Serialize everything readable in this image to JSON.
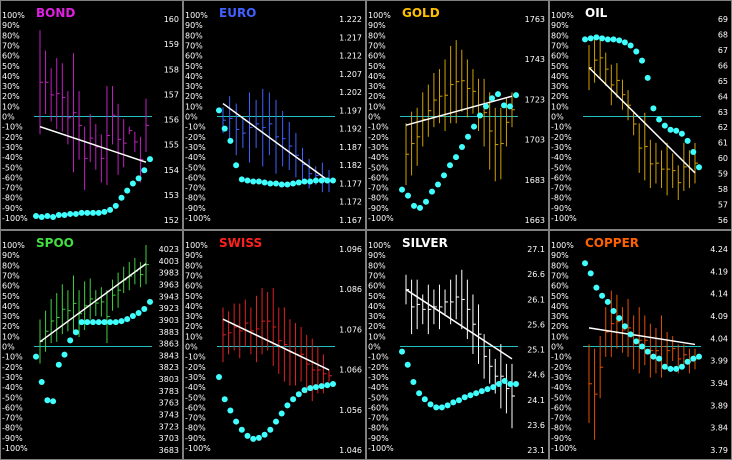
{
  "chart_data": [
    {
      "type": "line",
      "title": "BOND",
      "title_color": "#e020e0",
      "price_color": "#c020c0",
      "oscillator_ticks": [
        "100%",
        "90%",
        "80%",
        "70%",
        "60%",
        "50%",
        "40%",
        "30%",
        "20%",
        "10%",
        "0%",
        "-10%",
        "-20%",
        "-30%",
        "-40%",
        "-50%",
        "-60%",
        "-70%",
        "-80%",
        "-90%",
        "-100%"
      ],
      "price_ticks": [
        "160",
        "159",
        "158",
        "157",
        "156",
        "155",
        "154",
        "153",
        "152"
      ],
      "price_range": [
        152,
        160
      ],
      "bars": [
        [
          155.3,
          159.4
        ],
        [
          156.1,
          158.6
        ],
        [
          155.8,
          157.9
        ],
        [
          155.5,
          158.3
        ],
        [
          155.4,
          158.1
        ],
        [
          154.9,
          157.0
        ],
        [
          153.8,
          158.5
        ],
        [
          154.3,
          157.0
        ],
        [
          153.1,
          155.6
        ],
        [
          154.2,
          156.1
        ],
        [
          153.9,
          155.7
        ],
        [
          153.4,
          155.3
        ],
        [
          153.3,
          157.2
        ],
        [
          154.9,
          157.2
        ],
        [
          153.7,
          156.5
        ],
        [
          154.0,
          155.9
        ],
        [
          155.3,
          155.6
        ],
        [
          154.6,
          155.4
        ],
        [
          153.4,
          155.2
        ],
        [
          154.6,
          156.7
        ]
      ],
      "regression": [
        155.6,
        154.2
      ],
      "oscillator": [
        -98,
        -99,
        -98,
        -99,
        -97,
        -97,
        -96,
        -96,
        -95,
        -95,
        -95,
        -95,
        -94,
        -92,
        -88,
        -80,
        -73,
        -66,
        -61,
        -53,
        -42
      ],
      "zero_line": true
    },
    {
      "type": "line",
      "title": "EURO",
      "title_color": "#4060ff",
      "price_color": "#4060ff",
      "oscillator_ticks": [
        "100%",
        "90%",
        "80%",
        "70%",
        "60%",
        "50%",
        "40%",
        "30%",
        "20%",
        "10%",
        "0%",
        "-10%",
        "-20%",
        "-30%",
        "-40%",
        "-50%",
        "-60%",
        "-70%",
        "-80%",
        "-90%",
        "-100%"
      ],
      "price_ticks": [
        "1.222",
        "1.217",
        "1.212",
        "1.207",
        "1.202",
        "1.197",
        "1.192",
        "1.187",
        "1.182",
        "1.177",
        "1.172",
        "1.167"
      ],
      "price_range": [
        1.167,
        1.222
      ],
      "bars": [
        [
          1.19,
          1.197
        ],
        [
          1.188,
          1.2
        ],
        [
          1.184,
          1.198
        ],
        [
          1.186,
          1.194
        ],
        [
          1.182,
          1.201
        ],
        [
          1.186,
          1.199
        ],
        [
          1.181,
          1.202
        ],
        [
          1.184,
          1.201
        ],
        [
          1.179,
          1.199
        ],
        [
          1.181,
          1.196
        ],
        [
          1.18,
          1.193
        ],
        [
          1.178,
          1.19
        ],
        [
          1.177,
          1.186
        ],
        [
          1.175,
          1.183
        ],
        [
          1.176,
          1.181
        ],
        [
          1.174,
          1.182
        ],
        [
          1.174,
          1.18
        ]
      ],
      "regression": [
        1.198,
        1.177
      ],
      "oscillator": [
        6,
        -12,
        -24,
        -48,
        -62,
        -63,
        -64,
        -64,
        -65,
        -66,
        -66,
        -67,
        -67,
        -66,
        -65,
        -64,
        -64,
        -63,
        -63,
        -63,
        -63
      ],
      "zero_line": true
    },
    {
      "type": "line",
      "title": "GOLD",
      "title_color": "#ffc000",
      "price_color": "#d0a000",
      "oscillator_ticks": [
        "100%",
        "90%",
        "80%",
        "70%",
        "60%",
        "50%",
        "40%",
        "30%",
        "20%",
        "10%",
        "0%",
        "-10%",
        "-20%",
        "-30%",
        "-40%",
        "-50%",
        "-60%",
        "-70%",
        "-80%",
        "-90%",
        "-100%"
      ],
      "price_ticks": [
        "1763",
        "1743",
        "1723",
        "1703",
        "1683",
        "1663"
      ],
      "price_range": [
        1663,
        1768
      ],
      "bars": [
        [
          1680,
          1712
        ],
        [
          1685,
          1718
        ],
        [
          1690,
          1720
        ],
        [
          1700,
          1728
        ],
        [
          1705,
          1732
        ],
        [
          1710,
          1738
        ],
        [
          1712,
          1740
        ],
        [
          1708,
          1745
        ],
        [
          1712,
          1752
        ],
        [
          1712,
          1755
        ],
        [
          1718,
          1750
        ],
        [
          1715,
          1745
        ],
        [
          1717,
          1740
        ],
        [
          1708,
          1735
        ],
        [
          1700,
          1735
        ],
        [
          1688,
          1728
        ],
        [
          1682,
          1720
        ],
        [
          1683,
          1720
        ],
        [
          1700,
          1725
        ],
        [
          1710,
          1728
        ]
      ],
      "regression": [
        1711,
        1726
      ],
      "oscillator": [
        -72,
        -78,
        -88,
        -90,
        -84,
        -74,
        -67,
        -58,
        -48,
        -40,
        -30,
        -20,
        -10,
        1,
        10,
        18,
        22,
        11,
        10,
        21
      ],
      "zero_line": true
    },
    {
      "type": "line",
      "title": "OIL",
      "title_color": "#ffffff",
      "price_color": "#d0a000",
      "oscillator_ticks": [
        "100%",
        "90%",
        "80%",
        "70%",
        "60%",
        "50%",
        "40%",
        "30%",
        "20%",
        "10%",
        "0%",
        "-10%",
        "-20%",
        "-30%",
        "-40%",
        "-50%",
        "-60%",
        "-70%",
        "-80%",
        "-90%",
        "-100%"
      ],
      "price_ticks": [
        "69",
        "68",
        "67",
        "66",
        "65",
        "64",
        "63",
        "62",
        "61",
        "60",
        "59",
        "58",
        "57",
        "56"
      ],
      "price_range": [
        56,
        69.5
      ],
      "bars": [
        [
          64.5,
          67.5
        ],
        [
          65.0,
          68.0
        ],
        [
          65.3,
          68.0
        ],
        [
          64.8,
          67.0
        ],
        [
          63.5,
          66.2
        ],
        [
          64.0,
          66.3
        ],
        [
          63.2,
          65.2
        ],
        [
          62.5,
          64.5
        ],
        [
          61.5,
          63.0
        ],
        [
          59.0,
          62.3
        ],
        [
          58.5,
          63.0
        ],
        [
          58.0,
          61.2
        ],
        [
          58.3,
          61.0
        ],
        [
          58.0,
          60.5
        ],
        [
          57.5,
          61.0
        ],
        [
          58.0,
          60.3
        ],
        [
          57.2,
          59.5
        ],
        [
          57.8,
          61.0
        ],
        [
          58.0,
          60.5
        ],
        [
          58.3,
          61.0
        ]
      ],
      "regression": [
        66.0,
        59.0
      ],
      "oscillator": [
        76,
        77,
        78,
        77,
        76,
        76,
        75,
        73,
        70,
        64,
        55,
        38,
        8,
        -3,
        -9,
        -13,
        -14,
        -17,
        -24,
        -35,
        -50
      ],
      "zero_line": true
    },
    {
      "type": "line",
      "title": "SPOO",
      "title_color": "#40e040",
      "price_color": "#40d040",
      "oscillator_ticks": [
        "100%",
        "90%",
        "80%",
        "70%",
        "60%",
        "50%",
        "40%",
        "30%",
        "20%",
        "10%",
        "0%",
        "-10%",
        "-20%",
        "-30%",
        "-40%",
        "-50%",
        "-60%",
        "-70%",
        "-80%",
        "-90%",
        "-100%"
      ],
      "price_ticks": [
        "4023",
        "4003",
        "3983",
        "3963",
        "3943",
        "3923",
        "3903",
        "3883",
        "3863",
        "3843",
        "3823",
        "3803",
        "3783",
        "3763",
        "3743",
        "3723",
        "3703",
        "3683"
      ],
      "price_range": [
        3681,
        4027
      ],
      "bars": [
        [
          3825,
          3900
        ],
        [
          3845,
          3915
        ],
        [
          3860,
          3935
        ],
        [
          3862,
          3945
        ],
        [
          3875,
          3960
        ],
        [
          3880,
          3950
        ],
        [
          3880,
          3975
        ],
        [
          3870,
          3950
        ],
        [
          3882,
          3965
        ],
        [
          3900,
          3970
        ],
        [
          3906,
          3950
        ],
        [
          3905,
          3955
        ],
        [
          3860,
          3950
        ],
        [
          3915,
          3968
        ],
        [
          3920,
          3980
        ],
        [
          3945,
          3990
        ],
        [
          3950,
          3998
        ],
        [
          3960,
          4005
        ],
        [
          3955,
          3998
        ],
        [
          3960,
          4027
        ]
      ],
      "regression": [
        3862,
        3995
      ],
      "oscillator": [
        -10,
        -35,
        -53,
        -54,
        -18,
        -8,
        6,
        14,
        24,
        24,
        24,
        24,
        24,
        24,
        24,
        25,
        27,
        30,
        33,
        37,
        44
      ],
      "zero_line": true
    },
    {
      "type": "line",
      "title": "SWISS",
      "title_color": "#ff2020",
      "price_color": "#e02020",
      "oscillator_ticks": [
        "100%",
        "90%",
        "80%",
        "70%",
        "60%",
        "50%",
        "40%",
        "30%",
        "20%",
        "10%",
        "0%",
        "-10%",
        "-20%",
        "-30%",
        "-40%",
        "-50%",
        "-60%",
        "-70%",
        "-80%",
        "-90%",
        "-100%"
      ],
      "price_ticks": [
        "1.096",
        "1.086",
        "1.076",
        "1.066",
        "1.056",
        "1.046"
      ],
      "price_range": [
        1.046,
        1.098
      ],
      "bars": [
        [
          1.068,
          1.082
        ],
        [
          1.07,
          1.081
        ],
        [
          1.071,
          1.083
        ],
        [
          1.069,
          1.083
        ],
        [
          1.072,
          1.084
        ],
        [
          1.07,
          1.082
        ],
        [
          1.068,
          1.085
        ],
        [
          1.07,
          1.087
        ],
        [
          1.071,
          1.086
        ],
        [
          1.067,
          1.087
        ],
        [
          1.065,
          1.082
        ],
        [
          1.063,
          1.082
        ],
        [
          1.062,
          1.079
        ],
        [
          1.062,
          1.078
        ],
        [
          1.063,
          1.077
        ],
        [
          1.06,
          1.075
        ],
        [
          1.058,
          1.074
        ],
        [
          1.06,
          1.072
        ],
        [
          1.06,
          1.07
        ],
        [
          1.063,
          1.066
        ]
      ],
      "regression": [
        1.079,
        1.066
      ],
      "oscillator": [
        -30,
        -52,
        -63,
        -74,
        -82,
        -88,
        -91,
        -90,
        -87,
        -82,
        -74,
        -66,
        -58,
        -52,
        -47,
        -43,
        -41,
        -40,
        -39,
        -38,
        -37
      ],
      "zero_line": true
    },
    {
      "type": "line",
      "title": "SILVER",
      "title_color": "#ffffff",
      "price_color": "#ffffff",
      "oscillator_ticks": [
        "100%",
        "90%",
        "80%",
        "70%",
        "60%",
        "50%",
        "40%",
        "30%",
        "20%",
        "10%",
        "0%",
        "-10%",
        "-20%",
        "-30%",
        "-40%",
        "-50%",
        "-60%",
        "-70%",
        "-80%",
        "-90%",
        "-100%"
      ],
      "price_ticks": [
        "27.1",
        "26.6",
        "26.1",
        "25.6",
        "25.1",
        "24.6",
        "24.1",
        "23.6",
        "23.1"
      ],
      "price_range": [
        23.1,
        27.2
      ],
      "bars": [
        [
          26.0,
          26.6
        ],
        [
          25.4,
          26.5
        ],
        [
          25.5,
          26.5
        ],
        [
          25.6,
          26.2
        ],
        [
          25.4,
          26.4
        ],
        [
          25.6,
          26.3
        ],
        [
          25.5,
          26.4
        ],
        [
          25.8,
          26.3
        ],
        [
          25.6,
          26.5
        ],
        [
          25.7,
          26.6
        ],
        [
          25.5,
          26.7
        ],
        [
          25.3,
          26.5
        ],
        [
          25.0,
          26.2
        ],
        [
          24.8,
          26.0
        ],
        [
          24.5,
          25.4
        ],
        [
          24.4,
          25.1
        ],
        [
          24.2,
          24.9
        ],
        [
          23.9,
          25.2
        ],
        [
          23.8,
          24.8
        ],
        [
          23.5,
          24.8
        ]
      ],
      "regression": [
        26.3,
        24.9
      ],
      "oscillator": [
        -5,
        -18,
        -35,
        -46,
        -52,
        -57,
        -60,
        -60,
        -58,
        -55,
        -53,
        -50,
        -48,
        -46,
        -44,
        -42,
        -40,
        -37,
        -34,
        -37,
        -37
      ],
      "zero_line": true
    },
    {
      "type": "line",
      "title": "COPPER",
      "title_color": "#ff6000",
      "price_color": "#e05000",
      "oscillator_ticks": [
        "100%",
        "90%",
        "80%",
        "70%",
        "60%",
        "50%",
        "40%",
        "30%",
        "20%",
        "10%",
        "0%",
        "-10%",
        "-20%",
        "-30%",
        "-40%",
        "-50%",
        "-60%",
        "-70%",
        "-80%",
        "-90%",
        "-100%"
      ],
      "price_ticks": [
        "4.24",
        "4.19",
        "4.14",
        "4.09",
        "4.04",
        "3.99",
        "3.94",
        "3.89",
        "3.84",
        "3.79"
      ],
      "price_range": [
        3.78,
        4.27
      ],
      "bars": [
        [
          3.84,
          4.03
        ],
        [
          3.8,
          4.02
        ],
        [
          3.9,
          4.05
        ],
        [
          4.0,
          4.12
        ],
        [
          4.0,
          4.16
        ],
        [
          4.02,
          4.15
        ],
        [
          4.01,
          4.12
        ],
        [
          4.0,
          4.14
        ],
        [
          3.97,
          4.1
        ],
        [
          3.96,
          4.12
        ],
        [
          3.98,
          4.1
        ],
        [
          3.95,
          4.08
        ],
        [
          3.96,
          4.07
        ],
        [
          3.95,
          4.1
        ],
        [
          3.97,
          4.06
        ],
        [
          3.99,
          4.05
        ],
        [
          3.96,
          4.03
        ],
        [
          3.98,
          4.03
        ],
        [
          3.96,
          4.02
        ],
        [
          3.97,
          4.02
        ]
      ],
      "regression": [
        4.07,
        4.03
      ],
      "oscillator": [
        82,
        72,
        58,
        50,
        44,
        35,
        28,
        20,
        12,
        5,
        0,
        -5,
        -10,
        -12,
        -20,
        -22,
        -22,
        -20,
        -15,
        -12,
        -10
      ],
      "zero_line": true
    }
  ]
}
